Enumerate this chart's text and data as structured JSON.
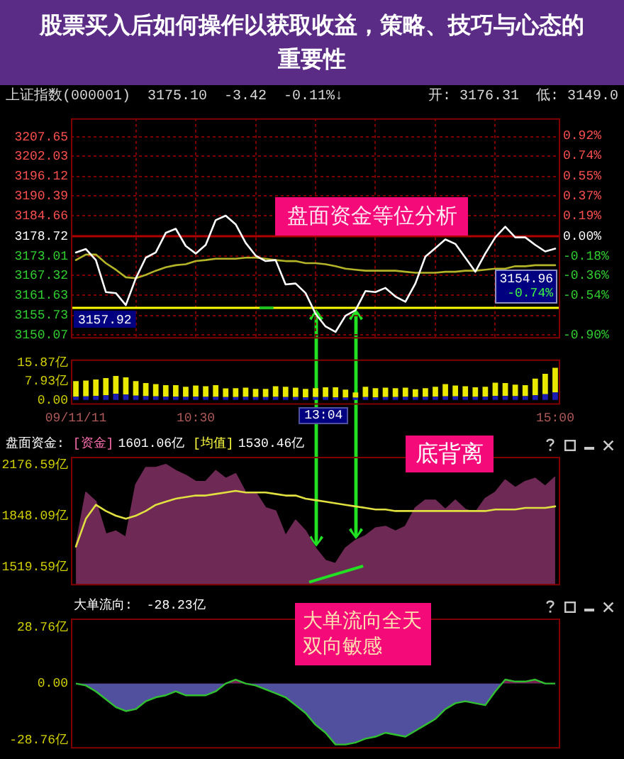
{
  "chart_data": [
    {
      "type": "line",
      "title": "股票买入后如何操作以获取收益，策略、技巧与心态的重要性",
      "categories": [
        null,
        null,
        null,
        null,
        null,
        null,
        null,
        null,
        null,
        null,
        null,
        null,
        null,
        null,
        null,
        null,
        null,
        null,
        null,
        null,
        null,
        null,
        null,
        null,
        null,
        null,
        null,
        null,
        null,
        null,
        null,
        null,
        null,
        null,
        null,
        null,
        null,
        null,
        null,
        null,
        null,
        null,
        null,
        null,
        null,
        null,
        null,
        null,
        null
      ],
      "series": [
        {
          "color": "#ffffff",
          "values": [
            3174.0,
            3175.0,
            3171.8,
            3162.5,
            3162.2,
            3158.7,
            3166.5,
            3172.5,
            3174.0,
            3179.7,
            3180.9,
            3175.9,
            3173.7,
            3176.2,
            3183.4,
            3184.7,
            3182.2,
            3176.8,
            3173.1,
            3171.5,
            3171.8,
            3164.7,
            3165.0,
            3162.2,
            3156.2,
            3152.5,
            3150.9,
            3155.6,
            3157.2,
            3162.8,
            3162.5,
            3163.7,
            3161.2,
            3159.7,
            3165.0,
            3172.8,
            3175.3,
            3177.8,
            3176.5,
            3172.5,
            3168.4,
            3173.7,
            3178.4,
            3181.5,
            3178.4,
            3178.4,
            3176.2,
            3174.3,
            3175.1
          ]
        },
        {
          "color": "#b4b428",
          "values": [
            3171.8,
            3173.4,
            3173.4,
            3170.9,
            3169.0,
            3166.8,
            3166.5,
            3167.5,
            3168.7,
            3169.7,
            3170.3,
            3170.6,
            3171.5,
            3171.8,
            3172.2,
            3172.2,
            3172.2,
            3172.5,
            3172.5,
            3172.2,
            3171.8,
            3171.5,
            3171.5,
            3170.9,
            3170.9,
            3170.6,
            3170.0,
            3169.3,
            3169.0,
            3168.7,
            3168.7,
            3168.7,
            3168.7,
            3168.4,
            3168.1,
            3168.1,
            3168.1,
            3168.4,
            3168.4,
            3168.7,
            3168.7,
            3169.0,
            3169.3,
            3169.3,
            3170.0,
            3170.0,
            3170.3,
            3170.3,
            3170.3
          ]
        }
      ],
      "ylim": [
        3149,
        3213
      ],
      "yticks": [
        3207.65,
        3202.03,
        3196.12,
        3190.39,
        3184.66,
        3178.72,
        3173.01,
        3167.32,
        3161.63,
        3155.73,
        3150.07
      ],
      "y2lim": [
        -0.935,
        1.078
      ],
      "y2ticks": [
        {
          "value": 0.92,
          "label": "0.92%"
        },
        {
          "value": 0.74,
          "label": "0.74%"
        },
        {
          "value": 0.55,
          "label": "0.55%"
        },
        {
          "value": 0.37,
          "label": "0.37%"
        },
        {
          "value": 0.19,
          "label": "0.19%"
        },
        {
          "value": 0,
          "label": "0.00%"
        },
        {
          "value": -0.18,
          "label": "-0.18%"
        },
        {
          "value": -0.36,
          "label": "-0.36%"
        },
        {
          "value": -0.54,
          "label": "-0.54%"
        },
        {
          "value": -0.9,
          "label": "-0.90%"
        }
      ],
      "ref_lines": [
        {
          "axis": "y",
          "value": 3178.72,
          "color": "#b00000"
        },
        {
          "axis": "y",
          "value": 3157.92,
          "label": "3157.92",
          "color": "#ffff00"
        }
      ],
      "annotations": [
        "上证指数(000001)  3175.10  -3.42  -0.11%↓",
        "开: 3176.31  低: 3149.0",
        "盘面资金等位分析",
        "3154.96",
        "-0.74%"
      ],
      "grid": true,
      "tick_labels": "y"
    },
    {
      "type": "bar",
      "stacked": true,
      "categories": [
        "09/11/11",
        null,
        null,
        null,
        null,
        null,
        null,
        null,
        null,
        null,
        null,
        null,
        "10:30",
        null,
        null,
        null,
        null,
        null,
        null,
        null,
        null,
        null,
        null,
        null,
        null,
        null,
        null,
        null,
        null,
        null,
        null,
        null,
        null,
        null,
        null,
        null,
        null,
        null,
        null,
        null,
        null,
        null,
        null,
        null,
        null,
        null,
        null,
        null,
        "15:00"
      ],
      "series": [
        {
          "color": "#1c1cb4",
          "values": [
            1.4,
            1.5,
            1.7,
            2.0,
            2.6,
            2.3,
            1.8,
            1.6,
            1.5,
            1.4,
            1.4,
            1.3,
            1.4,
            1.3,
            1.3,
            1.2,
            1.2,
            1.3,
            1.2,
            1.2,
            1.3,
            1.2,
            1.2,
            1.1,
            1.2,
            1.2,
            1.1,
            1.0,
            1.0,
            1.2,
            1.1,
            1.2,
            1.2,
            1.3,
            1.2,
            1.3,
            1.4,
            1.5,
            1.5,
            1.4,
            1.3,
            1.4,
            1.7,
            1.7,
            1.6,
            1.6,
            2.0,
            2.4,
            3.2
          ]
        },
        {
          "color": "#e8e800",
          "values": [
            6.6,
            6.7,
            7.0,
            7.3,
            7.6,
            7.3,
            6.2,
            5.6,
            5.2,
            4.9,
            4.9,
            4.3,
            4.7,
            4.5,
            5.0,
            3.7,
            3.8,
            3.9,
            3.5,
            3.5,
            4.5,
            4.4,
            4.0,
            3.6,
            3.8,
            4.2,
            4.3,
            3.4,
            2.2,
            4.4,
            3.9,
            4.0,
            3.8,
            3.9,
            3.3,
            3.7,
            4.2,
            5.2,
            4.6,
            4.4,
            4.1,
            4.2,
            5.6,
            5.5,
            4.9,
            4.7,
            7.1,
            8.7,
            10.5
          ]
        }
      ],
      "ylim": [
        -2,
        17.2
      ],
      "yticks": [
        {
          "value": 0,
          "label": "0.00"
        },
        {
          "value": 7.93,
          "label": "7.93亿"
        },
        {
          "value": 15.87,
          "label": "15.87亿"
        }
      ],
      "annotations": [
        "13:04"
      ]
    },
    {
      "type": "area",
      "categories": [
        null,
        null,
        null,
        null,
        null,
        null,
        null,
        null,
        null,
        null,
        null,
        null,
        null,
        null,
        null,
        null,
        null,
        null,
        null,
        null,
        null,
        null,
        null,
        null,
        null,
        null,
        null,
        null,
        null,
        null,
        null,
        null,
        null,
        null,
        null,
        null,
        null,
        null,
        null,
        null,
        null,
        null,
        null,
        null,
        null,
        null,
        null,
        null,
        null
      ],
      "series": [
        {
          "color": "#6e2a55",
          "values": [
            1650,
            2000,
            1940,
            1730,
            1750,
            1710,
            2050,
            2160,
            2160,
            2180,
            2140,
            2110,
            2070,
            2070,
            2140,
            2090,
            2120,
            2000,
            2000,
            1900,
            1880,
            1720,
            1820,
            1750,
            1640,
            1560,
            1540,
            1640,
            1690,
            1720,
            1770,
            1780,
            1750,
            1780,
            1900,
            1950,
            1950,
            1890,
            1950,
            1890,
            1870,
            1960,
            2000,
            2080,
            2030,
            2070,
            2090,
            2040,
            2100
          ]
        },
        {
          "type": "line",
          "color": "#e0e040",
          "values": [
            1650,
            1830,
            1920,
            1880,
            1850,
            1830,
            1850,
            1880,
            1920,
            1940,
            1960,
            1970,
            1980,
            1980,
            1990,
            2000,
            2010,
            2000,
            2000,
            2000,
            1990,
            1980,
            1980,
            1960,
            1950,
            1940,
            1930,
            1920,
            1910,
            1900,
            1890,
            1890,
            1880,
            1880,
            1880,
            1880,
            1880,
            1880,
            1880,
            1880,
            1880,
            1880,
            1890,
            1890,
            1890,
            1900,
            1900,
            1900,
            1910
          ]
        }
      ],
      "ylim": [
        1400,
        2230
      ],
      "yticks": [
        {
          "value": 2176.59,
          "label": "2176.59亿"
        },
        {
          "value": 1848.09,
          "label": "1848.09亿"
        },
        {
          "value": 1519.59,
          "label": "1519.59亿"
        }
      ],
      "annotations": [
        "盘面资金:",
        "[资金]",
        "1601.06亿",
        "[均值]",
        "1530.46亿",
        "底背离"
      ],
      "tick_labels": "y"
    },
    {
      "type": "area",
      "categories": [
        null,
        null,
        null,
        null,
        null,
        null,
        null,
        null,
        null,
        null,
        null,
        null,
        null,
        null,
        null,
        null,
        null,
        null,
        null,
        null,
        null,
        null,
        null,
        null,
        null,
        null,
        null,
        null,
        null,
        null,
        null,
        null,
        null,
        null,
        null,
        null,
        null,
        null,
        null,
        null,
        null,
        null,
        null,
        null,
        null,
        null,
        null,
        null,
        null
      ],
      "series": [
        {
          "color": "#50509e",
          "values": [
            0,
            -1,
            -4,
            -8,
            -12,
            -14,
            -13,
            -9,
            -7,
            -6,
            -4,
            -6,
            -6,
            -6,
            -4,
            0,
            2,
            0,
            -1,
            -3,
            -5,
            -7,
            -11,
            -15,
            -21,
            -25,
            -31,
            -31,
            -30,
            -28,
            -27,
            -25,
            -26,
            -27,
            -24,
            -21,
            -18,
            -13,
            -10,
            -9,
            -10,
            -11,
            -4,
            2,
            1,
            1,
            2,
            0,
            0
          ]
        }
      ],
      "ylim": [
        -33,
        33
      ],
      "yticks": [
        {
          "value": 28.76,
          "label": "28.76亿"
        },
        {
          "value": 0,
          "label": "0.00"
        },
        {
          "value": -28.76,
          "label": "-28.76亿"
        }
      ],
      "annotations": [
        "大单流向:",
        "-28.23亿",
        "大单流向全天双向敏感"
      ],
      "tick_labels": "y"
    }
  ]
}
